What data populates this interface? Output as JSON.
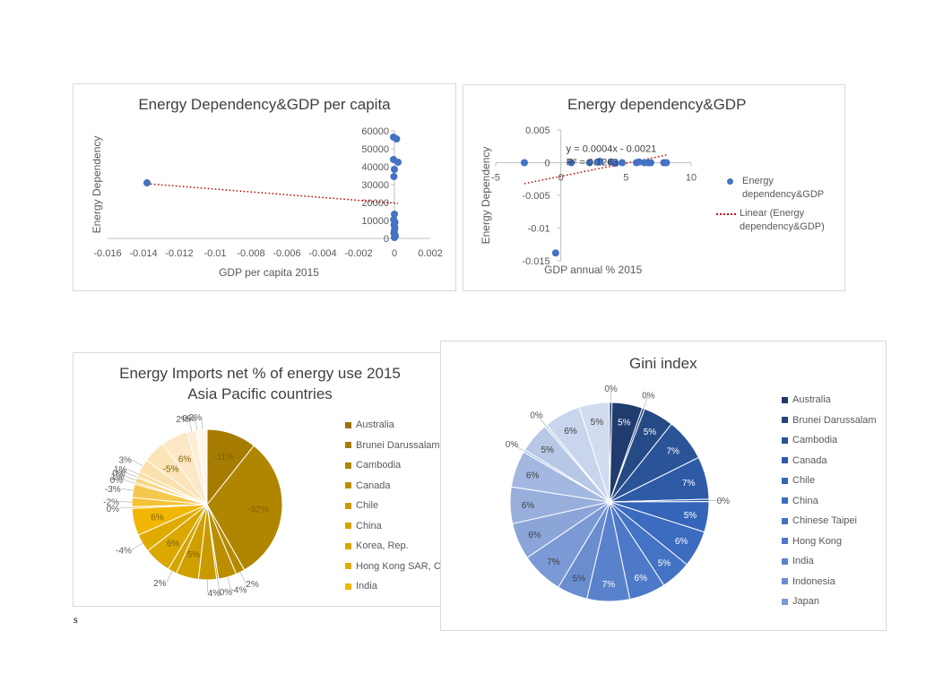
{
  "charts": {
    "scatter_gdp_per_capita": {
      "type": "scatter",
      "title": "Energy Dependency&GDP per capita",
      "xlabel": "GDP per capita 2015",
      "ylabel": "Energy Dependency",
      "xlim": [
        -0.016,
        0.002
      ],
      "ylim": [
        0,
        60000
      ],
      "xticks": [
        "-0.016",
        "-0.014",
        "-0.012",
        "-0.01",
        "-0.008",
        "-0.006",
        "-0.004",
        "-0.002",
        "0",
        "0.002"
      ],
      "xtick_values": [
        -0.016,
        -0.014,
        -0.012,
        -0.01,
        -0.008,
        -0.006,
        -0.004,
        -0.002,
        0,
        0.002
      ],
      "yticks": [
        "0",
        "10000",
        "20000",
        "30000",
        "40000",
        "50000",
        "60000"
      ],
      "ytick_values": [
        0,
        10000,
        20000,
        30000,
        40000,
        50000,
        60000
      ],
      "points": [
        {
          "x": -0.0138,
          "y": 31000
        },
        {
          "x": -5e-05,
          "y": 56500
        },
        {
          "x": 0.00012,
          "y": 55500
        },
        {
          "x": -5e-05,
          "y": 44000
        },
        {
          "x": 0.0002,
          "y": 42500
        },
        {
          "x": 0.0,
          "y": 38500
        },
        {
          "x": -3e-05,
          "y": 34500
        },
        {
          "x": 0.0,
          "y": 13500
        },
        {
          "x": -4e-05,
          "y": 10500
        },
        {
          "x": 3e-05,
          "y": 9000
        },
        {
          "x": -2e-05,
          "y": 7500
        },
        {
          "x": 2e-05,
          "y": 6000
        },
        {
          "x": 0.0,
          "y": 4500
        },
        {
          "x": -3e-05,
          "y": 3000
        },
        {
          "x": 3e-05,
          "y": 2000
        },
        {
          "x": 5e-05,
          "y": 1200
        },
        {
          "x": 0.0,
          "y": 500
        }
      ],
      "trendline": {
        "x1": -0.0138,
        "y1": 30500,
        "x2": 0.0002,
        "y2": 19500
      }
    },
    "scatter_gdp_annual": {
      "type": "scatter",
      "title": "Energy dependency&GDP",
      "xlabel": "GDP annual % 2015",
      "ylabel": "Energy Dependency",
      "xlim": [
        -5,
        10
      ],
      "ylim": [
        -0.015,
        0.005
      ],
      "xticks": [
        "-5",
        "0",
        "5",
        "10"
      ],
      "xtick_values": [
        -5,
        0,
        5,
        10
      ],
      "yticks": [
        "-0.015",
        "-0.01",
        "-0.005",
        "0",
        "0.005"
      ],
      "ytick_values": [
        -0.015,
        -0.01,
        -0.005,
        0,
        0.005
      ],
      "equation": "y = 0.0004x - 0.0021",
      "r_squared": "R² = 0.1263",
      "points": [
        {
          "x": -2.8,
          "y": 0.0
        },
        {
          "x": 0.8,
          "y": 0.0
        },
        {
          "x": 2.2,
          "y": 0.0
        },
        {
          "x": 2.8,
          "y": 0.0001
        },
        {
          "x": 3.0,
          "y": 0.0002
        },
        {
          "x": 3.9,
          "y": 0.0001
        },
        {
          "x": 4.2,
          "y": -0.0001
        },
        {
          "x": 4.7,
          "y": 0.0
        },
        {
          "x": 5.8,
          "y": 0.0
        },
        {
          "x": 6.0,
          "y": 0.0001
        },
        {
          "x": 6.4,
          "y": 0.0
        },
        {
          "x": 6.7,
          "y": 0.0
        },
        {
          "x": 6.9,
          "y": 0.0
        },
        {
          "x": 7.9,
          "y": 0.0
        },
        {
          "x": 8.1,
          "y": 0.0
        },
        {
          "x": -0.4,
          "y": -0.0138
        }
      ],
      "trendline": {
        "x1": -2.8,
        "y1": -0.0032,
        "x2": 8.2,
        "y2": 0.0012
      },
      "legend": {
        "series": "Energy dependency&GDP",
        "trend": "Linear (Energy dependency&GDP)"
      },
      "colors": {
        "point": "#4472C4",
        "trend": "#C00000"
      }
    },
    "pie_energy_imports": {
      "type": "pie",
      "title_line1": "Energy Imports net % of energy use 2015",
      "title_line2": "Asia Pacific countries",
      "slices": [
        {
          "label": "-11%",
          "value": 11,
          "color": "#A67C00"
        },
        {
          "label": "-32%",
          "value": 32,
          "color": "#B08500"
        },
        {
          "label": "2%",
          "value": 2,
          "color": "#B58A00"
        },
        {
          "label": "-4%",
          "value": 4,
          "color": "#BA8E00"
        },
        {
          "label": "0%",
          "value": 0.4,
          "color": "#BF9200"
        },
        {
          "label": "4%",
          "value": 4,
          "color": "#C99A00"
        },
        {
          "label": "5%",
          "value": 5,
          "color": "#CFA000"
        },
        {
          "label": "2%",
          "value": 2,
          "color": "#D4A400"
        },
        {
          "label": "6%",
          "value": 6,
          "color": "#DAA800"
        },
        {
          "label": "-4%",
          "value": 4,
          "color": "#E0AB00"
        },
        {
          "label": "6%",
          "value": 6,
          "color": "#F2B705"
        },
        {
          "label": "0%",
          "value": 0.4,
          "color": "#F4BD1A"
        },
        {
          "label": "-2%",
          "value": 2,
          "color": "#F4C233"
        },
        {
          "label": "-3%",
          "value": 3,
          "color": "#F5C84D"
        },
        {
          "label": "0%",
          "value": 0.4,
          "color": "#F6CD63"
        },
        {
          "label": "1%",
          "value": 1,
          "color": "#F7D278"
        },
        {
          "label": "0%",
          "value": 0.4,
          "color": "#F8D78A"
        },
        {
          "label": "1%",
          "value": 1,
          "color": "#F9DC9B"
        },
        {
          "label": "3%",
          "value": 3,
          "color": "#FAE1AC"
        },
        {
          "label": "-5%",
          "value": 5,
          "color": "#FBE4B8"
        },
        {
          "label": "6%",
          "value": 6,
          "color": "#FCE8C6"
        },
        {
          "label": "2%",
          "value": 2,
          "color": "#FDEDD4"
        },
        {
          "label": "0%",
          "value": 0.4,
          "color": "#FEF1DE"
        },
        {
          "label": "-2%",
          "value": 2,
          "color": "#FEF5E8"
        }
      ],
      "legend": [
        "Australia",
        "Brunei Darussalam",
        "Cambodia",
        "Canada",
        "Chile",
        "China",
        "Korea, Rep.",
        "Hong Kong SAR, China",
        "India"
      ],
      "legend_colors": [
        "#997300",
        "#A67C00",
        "#B08500",
        "#BA8E00",
        "#C99A00",
        "#D4A400",
        "#DAA800",
        "#E0AB00",
        "#F2B705"
      ]
    },
    "pie_gini": {
      "type": "pie",
      "title": "Gini index",
      "slices": [
        {
          "label": "0%",
          "value": 0.4,
          "color": "#1F3864"
        },
        {
          "label": "5%",
          "value": 5,
          "color": "#203C6E"
        },
        {
          "label": "0%",
          "value": 0.4,
          "color": "#24437A"
        },
        {
          "label": "5%",
          "value": 5,
          "color": "#264A85"
        },
        {
          "label": "7%",
          "value": 7,
          "color": "#2A5398"
        },
        {
          "label": "7%",
          "value": 7,
          "color": "#2E5AA6"
        },
        {
          "label": "0%",
          "value": 0.4,
          "color": "#3060B0"
        },
        {
          "label": "5%",
          "value": 5,
          "color": "#3565B8"
        },
        {
          "label": "6%",
          "value": 6,
          "color": "#3B6CC0"
        },
        {
          "label": "5%",
          "value": 5,
          "color": "#4472C4"
        },
        {
          "label": "6%",
          "value": 6,
          "color": "#4E79C8"
        },
        {
          "label": "7%",
          "value": 7,
          "color": "#5A82CC"
        },
        {
          "label": "5%",
          "value": 5,
          "color": "#6A8DD0"
        },
        {
          "label": "7%",
          "value": 7,
          "color": "#7B99D4"
        },
        {
          "label": "6%",
          "value": 6,
          "color": "#8BA5D9"
        },
        {
          "label": "6%",
          "value": 6,
          "color": "#98AFDC"
        },
        {
          "label": "6%",
          "value": 6,
          "color": "#A3B8E0"
        },
        {
          "label": "0%",
          "value": 0.4,
          "color": "#ADC0E3"
        },
        {
          "label": "5%",
          "value": 5,
          "color": "#B7C8E7"
        },
        {
          "label": "0%",
          "value": 0.4,
          "color": "#C0CFEA"
        },
        {
          "label": "6%",
          "value": 6,
          "color": "#C9D5ED"
        },
        {
          "label": "5%",
          "value": 5,
          "color": "#D2DCF0"
        }
      ],
      "legend": [
        "Australia",
        "Brunei Darussalam",
        "Cambodia",
        "Canada",
        "Chile",
        "China",
        "Chinese Taipei",
        "Hong Kong",
        "India",
        "Indonesia",
        "Japan"
      ],
      "legend_colors": [
        "#1F3864",
        "#24437A",
        "#2A5398",
        "#2E5AA6",
        "#3565B8",
        "#3B6CC0",
        "#4472C4",
        "#4E79C8",
        "#5A82CC",
        "#6A8DD0",
        "#7B99D4"
      ]
    }
  },
  "footer": {
    "stray_text": "s"
  }
}
